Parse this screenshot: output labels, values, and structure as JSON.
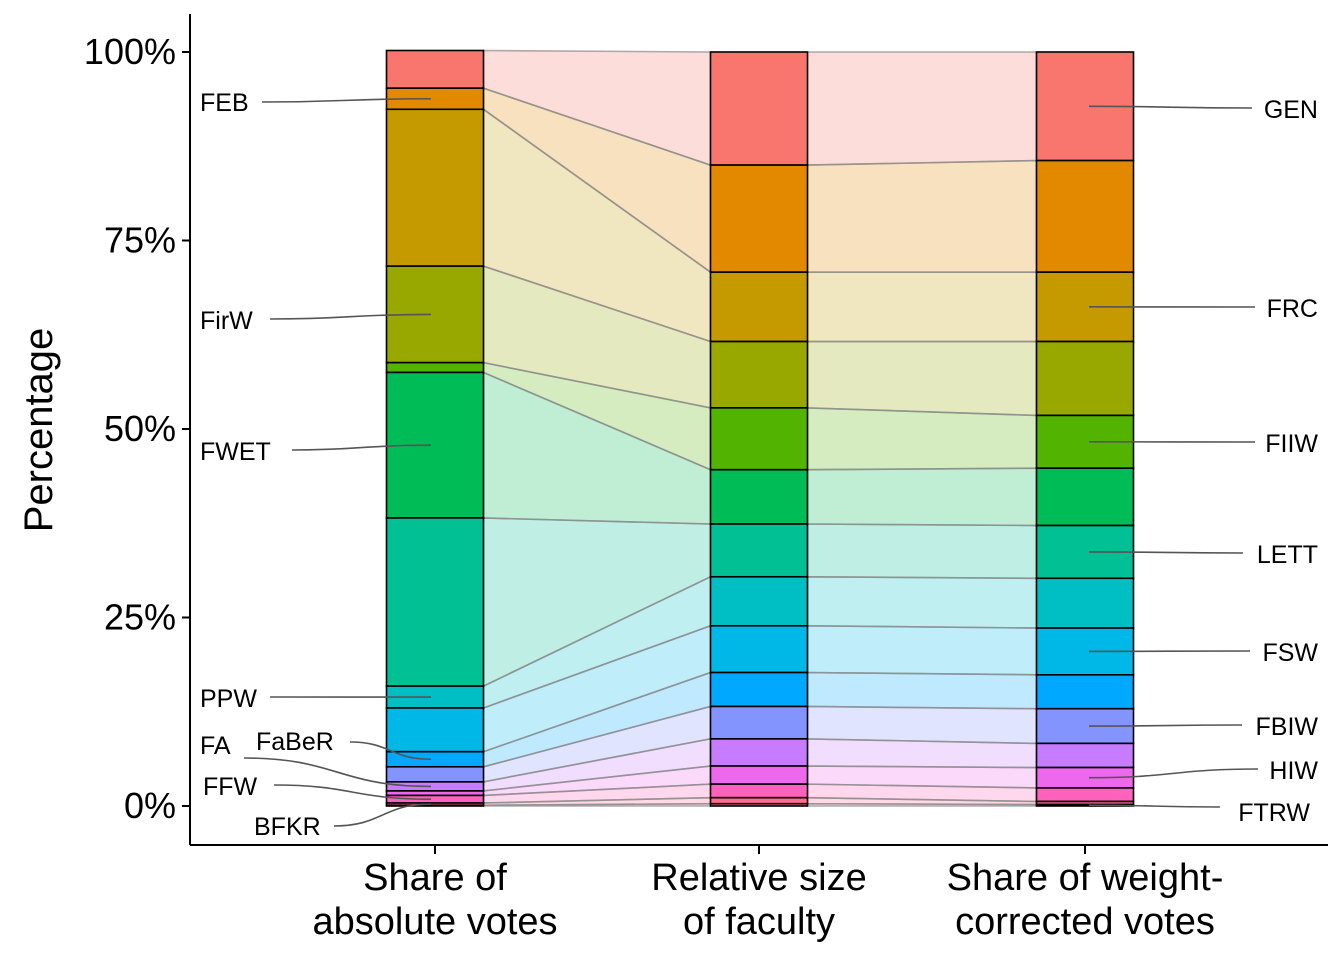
{
  "chart_data": {
    "type": "bar",
    "subtype": "stacked-alluvial",
    "ylabel": "Percentage",
    "xlabel": "",
    "ylim": [
      0,
      100
    ],
    "yticks": [
      "0%",
      "25%",
      "50%",
      "75%",
      "100%"
    ],
    "grid": false,
    "categories": [
      "Share of absolute votes",
      "Relative size of faculty",
      "Share of weight-corrected votes"
    ],
    "category_lines": [
      [
        "Share of",
        "absolute votes"
      ],
      [
        "Relative size",
        "of faculty"
      ],
      [
        "Share of weight-",
        "corrected votes"
      ]
    ],
    "series": [
      {
        "name": "GEN",
        "color": "#F8766D",
        "values": [
          5.0,
          15.0,
          14.4
        ]
      },
      {
        "name": "FEB",
        "color": "#E38900",
        "values": [
          2.8,
          14.2,
          14.8
        ]
      },
      {
        "name": "FRC",
        "color": "#C49A00",
        "values": [
          20.8,
          9.2,
          9.2
        ]
      },
      {
        "name": "FirW",
        "color": "#99A800",
        "values": [
          12.8,
          8.8,
          9.8
        ]
      },
      {
        "name": "FIIW",
        "color": "#53B400",
        "values": [
          1.3,
          8.2,
          7.0
        ]
      },
      {
        "name": "FWET",
        "color": "#00BC56",
        "values": [
          19.3,
          7.2,
          7.6
        ]
      },
      {
        "name": "LETT",
        "color": "#00C094",
        "values": [
          22.3,
          7.0,
          7.0
        ]
      },
      {
        "name": "PPW",
        "color": "#00BFC4",
        "values": [
          2.9,
          6.5,
          6.6
        ]
      },
      {
        "name": "FSW",
        "color": "#00B8E7",
        "values": [
          5.8,
          6.2,
          6.2
        ]
      },
      {
        "name": "FaBeR",
        "color": "#00A9FF",
        "values": [
          2.0,
          4.5,
          4.5
        ]
      },
      {
        "name": "FBIW",
        "color": "#8494FF",
        "values": [
          2.0,
          4.3,
          4.6
        ]
      },
      {
        "name": "FA",
        "color": "#C77CFF",
        "values": [
          1.2,
          3.6,
          3.2
        ]
      },
      {
        "name": "HIW",
        "color": "#ED68ED",
        "values": [
          0.6,
          2.4,
          2.7
        ]
      },
      {
        "name": "FFW",
        "color": "#FF62BC",
        "values": [
          1.0,
          1.8,
          1.8
        ]
      },
      {
        "name": "BFKR",
        "color": "#FF6C91",
        "values": [
          0.3,
          0.8,
          0.4
        ]
      },
      {
        "name": "FTRW",
        "color": "#FF77A0",
        "values": [
          0.1,
          0.3,
          0.2
        ]
      }
    ],
    "left_labels": [
      {
        "name": "FEB",
        "series": "FEB"
      },
      {
        "name": "FirW",
        "series": "FirW"
      },
      {
        "name": "FWET",
        "series": "FWET"
      },
      {
        "name": "PPW",
        "series": "PPW"
      },
      {
        "name": "FA",
        "series": "FA"
      },
      {
        "name": "FaBeR",
        "series": "FaBeR"
      },
      {
        "name": "FFW",
        "series": "FFW"
      },
      {
        "name": "BFKR",
        "series": "BFKR"
      }
    ],
    "right_labels": [
      {
        "name": "GEN",
        "series": "GEN"
      },
      {
        "name": "FRC",
        "series": "FRC"
      },
      {
        "name": "FIIW",
        "series": "FIIW"
      },
      {
        "name": "LETT",
        "series": "LETT"
      },
      {
        "name": "FSW",
        "series": "FSW"
      },
      {
        "name": "FBIW",
        "series": "FBIW"
      },
      {
        "name": "HIW",
        "series": "HIW"
      },
      {
        "name": "FTRW",
        "series": "FTRW"
      }
    ]
  }
}
